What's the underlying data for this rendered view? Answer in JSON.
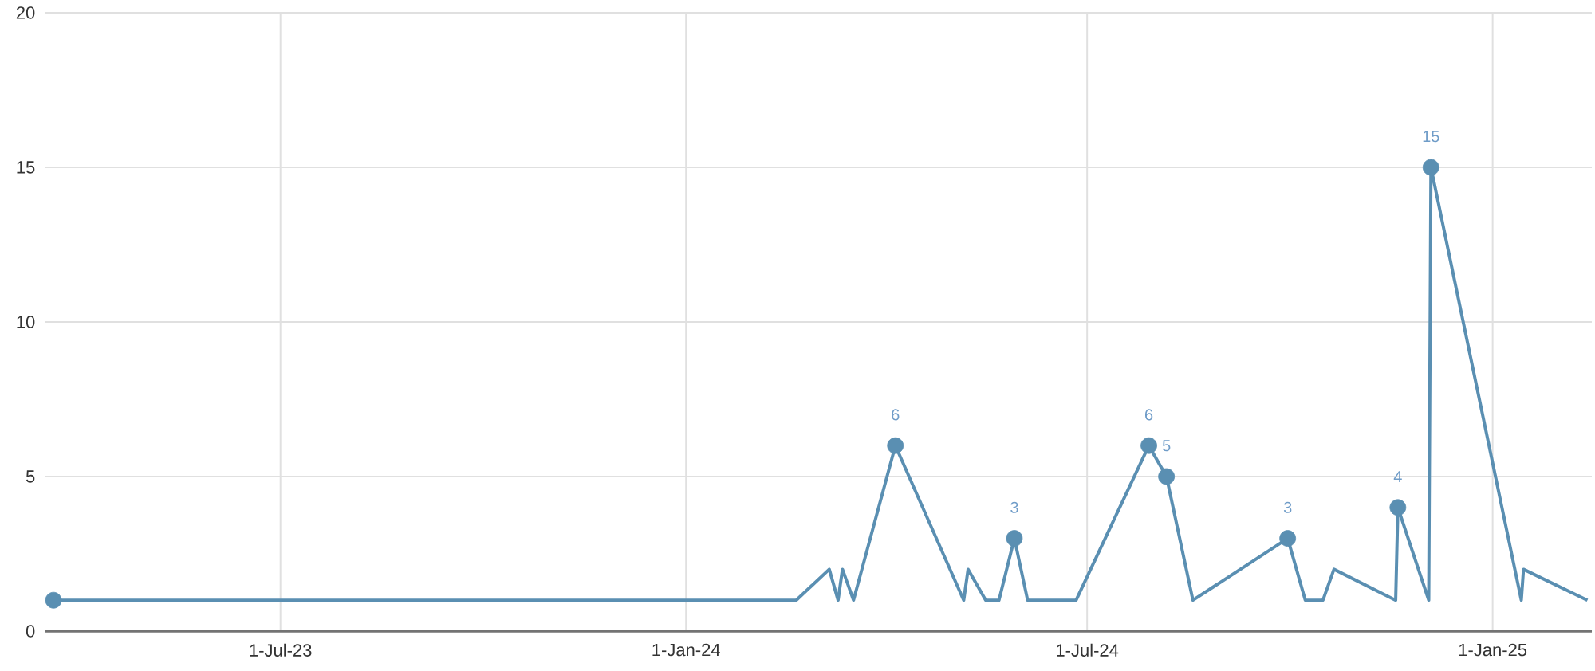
{
  "chart_data": {
    "type": "line",
    "xlim": [
      "2023-03-16",
      "2025-02-15"
    ],
    "ylim": [
      0,
      20
    ],
    "xticks": [
      {
        "value": "2023-07-01",
        "label": "1-Jul-23"
      },
      {
        "value": "2024-01-01",
        "label": "1-Jan-24"
      },
      {
        "value": "2024-07-01",
        "label": "1-Jul-24"
      },
      {
        "value": "2025-01-01",
        "label": "1-Jan-25"
      }
    ],
    "yticks": [
      0,
      5,
      10,
      15,
      20
    ],
    "grid": true,
    "series": [
      {
        "marker": "none",
        "color": "#5a8fb2",
        "x": [
          "2023-03-20",
          "2024-02-20",
          "2024-03-06",
          "2024-03-10",
          "2024-03-12",
          "2024-03-17",
          "2024-04-05",
          "2024-05-06",
          "2024-05-08",
          "2024-05-16",
          "2024-05-22",
          "2024-05-29",
          "2024-06-04",
          "2024-06-26",
          "2024-07-29",
          "2024-08-06",
          "2024-08-18",
          "2024-09-30",
          "2024-10-08",
          "2024-10-16",
          "2024-10-21",
          "2024-11-18",
          "2024-11-19",
          "2024-12-03",
          "2024-12-04",
          "2025-01-14",
          "2025-01-15",
          "2025-02-13"
        ],
        "values": [
          1,
          1,
          2,
          1,
          2,
          1,
          6,
          1,
          2,
          1,
          1,
          3,
          1,
          1,
          6,
          5,
          1,
          3,
          1,
          1,
          2,
          1,
          4,
          1,
          15,
          1,
          2,
          1
        ]
      },
      {
        "type": "scatter",
        "marker": "circle",
        "color": "#5a8fb2",
        "x": [
          "2023-03-20",
          "2024-04-05",
          "2024-05-29",
          "2024-07-29",
          "2024-08-06",
          "2024-09-30",
          "2024-11-19",
          "2024-12-04"
        ],
        "values": [
          1,
          6,
          3,
          6,
          5,
          3,
          4,
          15
        ],
        "value_labels": [
          null,
          "6",
          "3",
          "6",
          "5",
          "3",
          "4",
          "15"
        ]
      }
    ]
  }
}
